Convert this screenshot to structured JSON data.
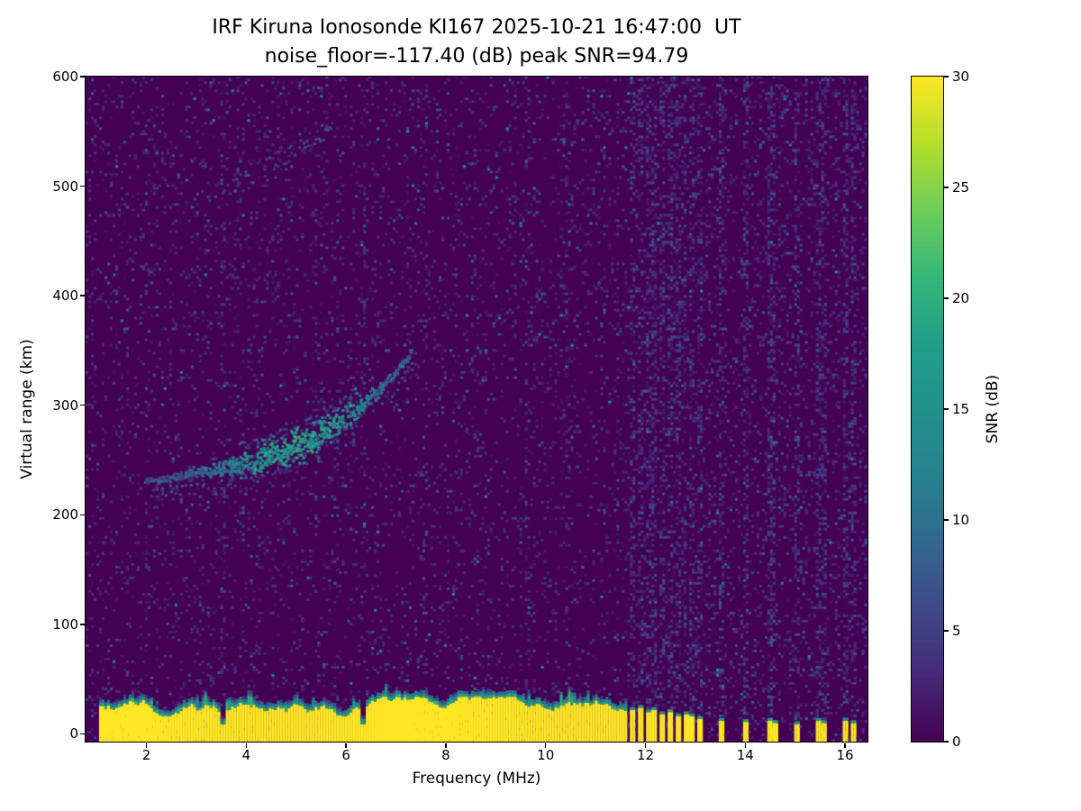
{
  "chart_data": {
    "type": "heatmap",
    "title": "IRF Kiruna Ionosonde KI167 2025-10-21 16:47:00  UT",
    "subtitle": "noise_floor=-117.40 (dB) peak SNR=94.79",
    "station": "IRF Kiruna Ionosonde KI167",
    "timestamp_ut": "2025-10-21 16:47:00 UT",
    "noise_floor_db": -117.4,
    "peak_snr_db": 94.79,
    "xlabel": "Frequency (MHz)",
    "ylabel": "Virtual range (km)",
    "xlim": [
      0.78,
      16.45
    ],
    "ylim": [
      -7,
      600
    ],
    "xticks": [
      2,
      4,
      6,
      8,
      10,
      12,
      14,
      16
    ],
    "yticks": [
      0,
      100,
      200,
      300,
      400,
      500,
      600
    ],
    "grid": false,
    "colormap": "viridis",
    "colorbar": {
      "label": "SNR (dB)",
      "min": 0,
      "max": 30,
      "ticks": [
        0,
        5,
        10,
        15,
        20,
        25,
        30
      ]
    },
    "features": {
      "ground_clutter": {
        "freq_start_mhz": 1.0,
        "freq_end_mhz": 11.62,
        "mean_top_km": 26,
        "snr_db": 30,
        "notch_freqs_mhz": [
          3.5,
          6.33
        ]
      },
      "f_layer_echo_trace": {
        "points_mhz_km": [
          [
            1.95,
            230
          ],
          [
            2.5,
            234
          ],
          [
            3.0,
            238
          ],
          [
            3.5,
            242
          ],
          [
            4.0,
            247
          ],
          [
            4.5,
            254
          ],
          [
            5.0,
            262
          ],
          [
            5.5,
            274
          ],
          [
            6.0,
            289
          ],
          [
            6.5,
            307
          ],
          [
            7.0,
            331
          ],
          [
            7.3,
            349
          ]
        ],
        "peak_snr_db": 22,
        "brightest_mhz": 5.0
      },
      "second_hop_trace": {
        "points_mhz_km": [
          [
            3.0,
            486
          ],
          [
            3.5,
            496
          ],
          [
            4.0,
            508
          ],
          [
            4.5,
            521
          ],
          [
            5.0,
            534
          ],
          [
            5.5,
            548
          ],
          [
            5.7,
            553
          ]
        ],
        "snr_db": 7
      },
      "interference_bars": [
        [
          11.72,
          22
        ],
        [
          11.87,
          24
        ],
        [
          12.02,
          20
        ],
        [
          12.17,
          22
        ],
        [
          12.32,
          18
        ],
        [
          12.47,
          20
        ],
        [
          12.62,
          16
        ],
        [
          12.77,
          18
        ],
        [
          12.92,
          16
        ],
        [
          13.07,
          14
        ],
        [
          13.5,
          12
        ],
        [
          13.98,
          11
        ],
        [
          14.45,
          12
        ],
        [
          14.55,
          10
        ],
        [
          15.0,
          9
        ],
        [
          15.45,
          12
        ],
        [
          15.55,
          10
        ],
        [
          16.0,
          12
        ],
        [
          16.15,
          10
        ]
      ],
      "noise_column_freqs_mhz": [
        3.5,
        6.33,
        7.55,
        9.6
      ]
    }
  }
}
